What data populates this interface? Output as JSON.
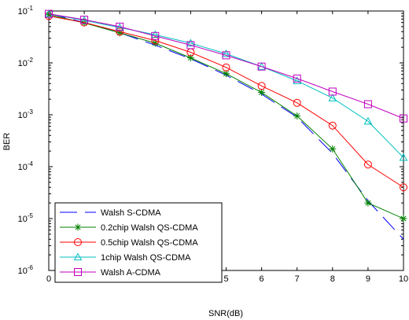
{
  "chart_data": {
    "type": "line",
    "xlabel": "SNR(dB)",
    "ylabel": "BER",
    "x": [
      0,
      1,
      2,
      3,
      4,
      5,
      6,
      7,
      8,
      9,
      10
    ],
    "xlim": [
      0,
      10
    ],
    "ylim": [
      1e-06,
      0.1
    ],
    "yscale": "log",
    "x_ticks": [
      "0",
      "1",
      "2",
      "3",
      "4",
      "5",
      "6",
      "7",
      "8",
      "9",
      "10"
    ],
    "y_ticks": [
      {
        "base": "10",
        "exp": "-1",
        "value": 0.1
      },
      {
        "base": "10",
        "exp": "-2",
        "value": 0.01
      },
      {
        "base": "10",
        "exp": "-3",
        "value": 0.001
      },
      {
        "base": "10",
        "exp": "-4",
        "value": 0.0001
      },
      {
        "base": "10",
        "exp": "-5",
        "value": 1e-05
      },
      {
        "base": "10",
        "exp": "-6",
        "value": 1e-06
      }
    ],
    "grid": false,
    "legend_position": "bottom-left",
    "series": [
      {
        "name": "Walsh S-CDMA",
        "color": "#0000ff",
        "marker": "none",
        "dash": "dashed",
        "values": [
          0.09,
          0.06,
          0.038,
          0.022,
          0.012,
          0.0058,
          0.0025,
          0.0009,
          0.00018,
          2.2e-05,
          4e-06
        ]
      },
      {
        "name": "0.2chip Walsh QS-CDMA",
        "color": "#008000",
        "marker": "star",
        "dash": "solid",
        "values": [
          0.085,
          0.059,
          0.038,
          0.024,
          0.0125,
          0.0062,
          0.0027,
          0.00095,
          0.00022,
          2e-05,
          1e-05
        ]
      },
      {
        "name": "0.5chip Walsh QS-CDMA",
        "color": "#ff0000",
        "marker": "circle",
        "dash": "solid",
        "values": [
          0.08,
          0.06,
          0.04,
          0.027,
          0.016,
          0.0082,
          0.0036,
          0.0017,
          0.00062,
          0.00011,
          4e-05
        ]
      },
      {
        "name": "1chip Walsh QS-CDMA",
        "color": "#00bfbf",
        "marker": "triangle",
        "dash": "solid",
        "values": [
          0.088,
          0.066,
          0.048,
          0.035,
          0.024,
          0.015,
          0.0085,
          0.0045,
          0.0021,
          0.00075,
          0.00015
        ]
      },
      {
        "name": "Walsh A-CDMA",
        "color": "#bf00bf",
        "marker": "square",
        "dash": "solid",
        "values": [
          0.088,
          0.068,
          0.05,
          0.033,
          0.022,
          0.014,
          0.0085,
          0.005,
          0.0028,
          0.0016,
          0.00085
        ]
      }
    ]
  }
}
